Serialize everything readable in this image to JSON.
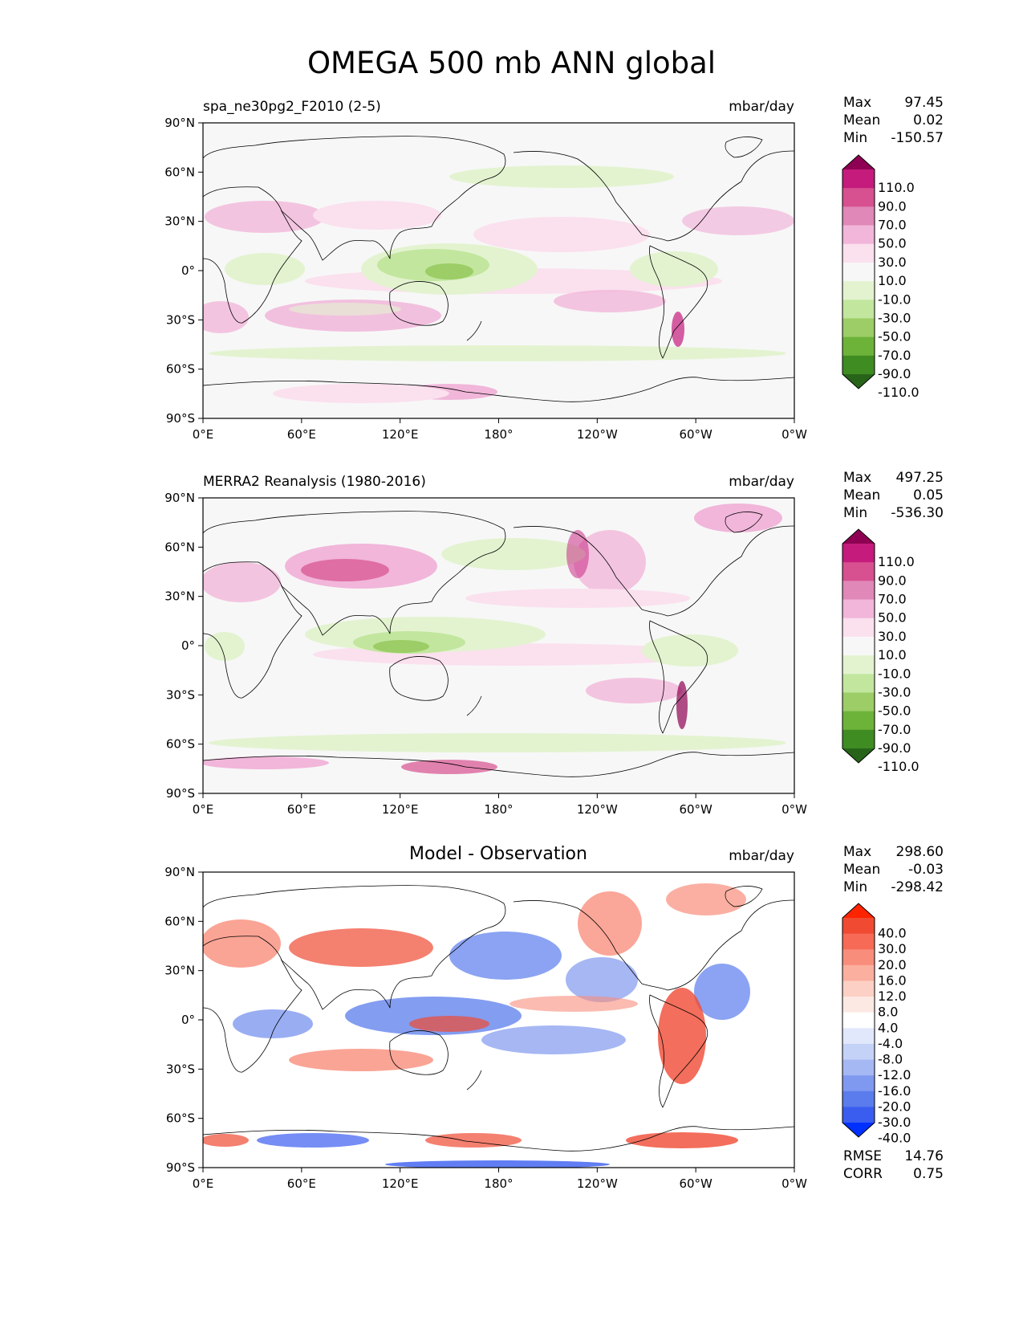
{
  "figure": {
    "title": "OMEGA 500 mb ANN global"
  },
  "palettes": {
    "omega_levels": [
      "110.0",
      "90.0",
      "70.0",
      "50.0",
      "30.0",
      "10.0",
      "-10.0",
      "-30.0",
      "-50.0",
      "-70.0",
      "-90.0",
      "-110.0"
    ],
    "omega_colors": [
      "#8e0152",
      "#c51b7d",
      "#d7508f",
      "#e088b8",
      "#f1b6da",
      "#fbe0ee",
      "#f7f7f7",
      "#e3f3d0",
      "#c2e69e",
      "#9ccd66",
      "#6db33a",
      "#3f8c22",
      "#276419"
    ],
    "diff_levels": [
      "40.0",
      "30.0",
      "20.0",
      "16.0",
      "12.0",
      "8.0",
      "4.0",
      "-4.0",
      "-8.0",
      "-12.0",
      "-16.0",
      "-20.0",
      "-30.0",
      "-40.0"
    ],
    "diff_colors": [
      "#ff2400",
      "#f04a33",
      "#f76a55",
      "#f98d7b",
      "#fbaf9f",
      "#fcd0c5",
      "#fde9e3",
      "#ffffff",
      "#e2e8fb",
      "#c5d2f8",
      "#a6b8f4",
      "#8099f0",
      "#5a7cec",
      "#3a5df0",
      "#0030ff"
    ]
  },
  "chart_data": [
    {
      "type": "heatmap",
      "panel_title": "spa_ne30pg2_F2010 (2-5)",
      "units": "mbar/day",
      "stats": {
        "max_label": "Max",
        "max": "97.45",
        "mean_label": "Mean",
        "mean": "0.02",
        "min_label": "Min",
        "min": "-150.57"
      },
      "xticks": [
        "0°E",
        "60°E",
        "120°E",
        "180°",
        "120°W",
        "60°W",
        "0°W"
      ],
      "yticks": [
        "90°N",
        "60°N",
        "30°N",
        "0°",
        "30°S",
        "60°S",
        "90°S"
      ],
      "xlim": [
        0,
        360
      ],
      "ylim": [
        -90,
        90
      ],
      "palette": "omega"
    },
    {
      "type": "heatmap",
      "panel_title": "MERRA2 Reanalysis (1980-2016)",
      "units": "mbar/day",
      "stats": {
        "max_label": "Max",
        "max": "497.25",
        "mean_label": "Mean",
        "mean": "0.05",
        "min_label": "Min",
        "min": "-536.30"
      },
      "xticks": [
        "0°E",
        "60°E",
        "120°E",
        "180°",
        "120°W",
        "60°W",
        "0°W"
      ],
      "yticks": [
        "90°N",
        "60°N",
        "30°N",
        "0°",
        "30°S",
        "60°S",
        "90°S"
      ],
      "xlim": [
        0,
        360
      ],
      "ylim": [
        -90,
        90
      ],
      "palette": "omega"
    },
    {
      "type": "heatmap",
      "center_title": "Model - Observation",
      "units": "mbar/day",
      "stats": {
        "max_label": "Max",
        "max": "298.60",
        "mean_label": "Mean",
        "mean": "-0.03",
        "min_label": "Min",
        "min": "-298.42"
      },
      "extra_stats": {
        "rmse_label": "RMSE",
        "rmse": "14.76",
        "corr_label": "CORR",
        "corr": "0.75"
      },
      "xticks": [
        "0°E",
        "60°E",
        "120°E",
        "180°",
        "120°W",
        "60°W",
        "0°W"
      ],
      "yticks": [
        "90°N",
        "60°N",
        "30°N",
        "0°",
        "30°S",
        "60°S",
        "90°S"
      ],
      "xlim": [
        0,
        360
      ],
      "ylim": [
        -90,
        90
      ],
      "palette": "diff"
    }
  ]
}
